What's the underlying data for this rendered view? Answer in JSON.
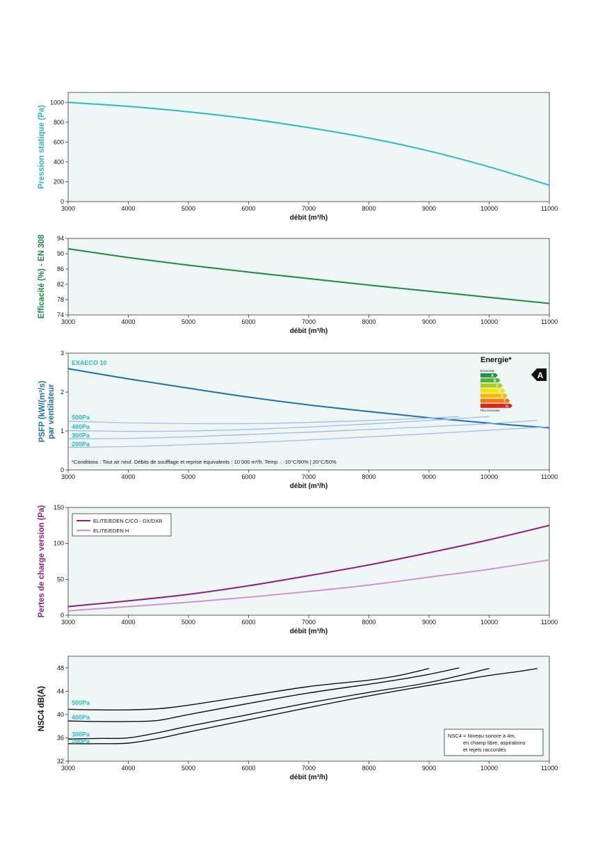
{
  "charts": [
    {
      "type": "line",
      "ylabel": "Pression statique (Pa)",
      "xlabel": "débit (m³/h)",
      "xlim": [
        3000,
        11000
      ],
      "ylim": [
        0,
        1100
      ],
      "xticks": [
        3000,
        4000,
        5000,
        6000,
        7000,
        8000,
        9000,
        10000,
        11000
      ],
      "yticks": [
        0,
        200,
        400,
        600,
        800,
        1000
      ],
      "color": "#2cb9bf",
      "series": [
        {
          "color": "#2cb9bf",
          "points": [
            [
              3000,
              1000
            ],
            [
              4000,
              960
            ],
            [
              5000,
              905
            ],
            [
              6000,
              835
            ],
            [
              7000,
              745
            ],
            [
              8000,
              640
            ],
            [
              9000,
              510
            ],
            [
              10000,
              350
            ],
            [
              11000,
              165
            ]
          ]
        }
      ]
    },
    {
      "type": "line",
      "ylabel": "Efficacité (%) - EN 308",
      "xlabel": "débit (m³/h)",
      "xlim": [
        3000,
        11000
      ],
      "ylim": [
        74,
        94
      ],
      "xticks": [
        3000,
        4000,
        5000,
        6000,
        7000,
        8000,
        9000,
        10000,
        11000
      ],
      "yticks": [
        74,
        78,
        82,
        86,
        90,
        94
      ],
      "color": "#1a8a45",
      "series": [
        {
          "color": "#1a8a45",
          "points": [
            [
              3000,
              91.3
            ],
            [
              4000,
              89.0
            ],
            [
              5000,
              87.0
            ],
            [
              6000,
              85.2
            ],
            [
              7000,
              83.5
            ],
            [
              8000,
              81.8
            ],
            [
              9000,
              80.2
            ],
            [
              10000,
              78.6
            ],
            [
              11000,
              77.0
            ]
          ]
        }
      ]
    },
    {
      "type": "line",
      "ylabel": "PSFP (kW/(m³/s)",
      "ylabel2": "par ventilateur",
      "xlabel": "débit (m³/h)",
      "xlim": [
        3000,
        11000
      ],
      "ylim": [
        0,
        3
      ],
      "xticks": [
        3000,
        4000,
        5000,
        6000,
        7000,
        8000,
        9000,
        10000,
        11000
      ],
      "yticks": [
        0,
        1,
        2,
        3
      ],
      "color": "#1a6fb5",
      "model_label": "EXAECO 10",
      "footnote": "*Conditions : Tout air neuf. Débits de soufflage et reprise équivalents : 10 000 m³/h. Temp. : -10°C/90% | 20°C/50%",
      "energy_label": {
        "title": "Energie*",
        "top": "Economie",
        "bottom": "Peu économe",
        "grades": [
          "A",
          "B",
          "C",
          "D",
          "E",
          "F",
          "G"
        ],
        "colors": [
          "#1b9a3c",
          "#57b130",
          "#a8c92a",
          "#f2e300",
          "#f6b800",
          "#ee7a12",
          "#e3201b"
        ],
        "rating": "A"
      },
      "series": [
        {
          "name": "",
          "color": "#1a6fb5",
          "width": 2,
          "points": [
            [
              3000,
              2.6
            ],
            [
              4000,
              2.34
            ],
            [
              5000,
              2.1
            ],
            [
              6000,
              1.87
            ],
            [
              7000,
              1.67
            ],
            [
              8000,
              1.5
            ],
            [
              9000,
              1.34
            ],
            [
              10000,
              1.2
            ],
            [
              11000,
              1.08
            ]
          ]
        },
        {
          "name": "500Pa",
          "color": "#9fbde8",
          "width": 1.3,
          "points": [
            [
              3000,
              1.25
            ],
            [
              4000,
              1.21
            ],
            [
              5000,
              1.19
            ],
            [
              6000,
              1.19
            ],
            [
              7000,
              1.22
            ],
            [
              8000,
              1.27
            ],
            [
              9000,
              1.33
            ],
            [
              9500,
              1.37
            ]
          ]
        },
        {
          "name": "400Pa",
          "color": "#9fbde8",
          "width": 1.3,
          "points": [
            [
              3000,
              1.01
            ],
            [
              4000,
              0.99
            ],
            [
              5000,
              1.0
            ],
            [
              6000,
              1.04
            ],
            [
              7000,
              1.1
            ],
            [
              8000,
              1.18
            ],
            [
              9000,
              1.27
            ],
            [
              10000,
              1.37
            ]
          ]
        },
        {
          "name": "300Pa",
          "color": "#9fbde8",
          "width": 1.3,
          "points": [
            [
              3000,
              0.8
            ],
            [
              4000,
              0.81
            ],
            [
              5000,
              0.85
            ],
            [
              6000,
              0.91
            ],
            [
              7000,
              0.97
            ],
            [
              8000,
              1.04
            ],
            [
              9000,
              1.11
            ],
            [
              10000,
              1.19
            ],
            [
              10800,
              1.27
            ]
          ]
        },
        {
          "name": "200Pa",
          "color": "#9fbde8",
          "width": 1.3,
          "points": [
            [
              3000,
              0.58
            ],
            [
              4000,
              0.6
            ],
            [
              5000,
              0.65
            ],
            [
              6000,
              0.7
            ],
            [
              7000,
              0.77
            ],
            [
              8000,
              0.85
            ],
            [
              9000,
              0.93
            ],
            [
              10000,
              1.02
            ],
            [
              11000,
              1.11
            ]
          ]
        }
      ],
      "curve_labels": [
        {
          "text": "500Pa",
          "y": 1.35
        },
        {
          "text": "400Pa",
          "y": 1.11
        },
        {
          "text": "300Pa",
          "y": 0.88
        },
        {
          "text": "200Pa",
          "y": 0.66
        }
      ],
      "curve_label_color": "#2cb9bf"
    },
    {
      "type": "line",
      "ylabel": "Pertes de charge version (Pa)",
      "xlabel": "débit (m³/h)",
      "xlim": [
        3000,
        11000
      ],
      "ylim": [
        0,
        150
      ],
      "xticks": [
        3000,
        4000,
        5000,
        6000,
        7000,
        8000,
        9000,
        10000,
        11000
      ],
      "yticks": [
        0,
        50,
        100,
        150
      ],
      "color": "#8e1f7f",
      "legend": [
        "ELITE/EDEN C/CO - DX/DXR",
        "ELITE/EDEN H"
      ],
      "series": [
        {
          "name": "ELITE/EDEN C/CO - DX/DXR",
          "color": "#8e1f7f",
          "width": 2,
          "points": [
            [
              3000,
              12
            ],
            [
              4000,
              20
            ],
            [
              5000,
              29
            ],
            [
              6000,
              41
            ],
            [
              7000,
              55
            ],
            [
              8000,
              70
            ],
            [
              9000,
              87
            ],
            [
              10000,
              105
            ],
            [
              11000,
              125
            ]
          ]
        },
        {
          "name": "ELITE/EDEN H",
          "color": "#d294c8",
          "width": 2,
          "points": [
            [
              3000,
              6
            ],
            [
              4000,
              12
            ],
            [
              5000,
              18
            ],
            [
              6000,
              25
            ],
            [
              7000,
              33
            ],
            [
              8000,
              42
            ],
            [
              9000,
              53
            ],
            [
              10000,
              64
            ],
            [
              11000,
              77
            ]
          ]
        }
      ]
    },
    {
      "type": "line",
      "ylabel": "NSC4 dB(A)",
      "xlabel": "débit (m³/h)",
      "xlim": [
        3000,
        11000
      ],
      "ylim": [
        32,
        50
      ],
      "xticks": [
        3000,
        4000,
        5000,
        6000,
        7000,
        8000,
        9000,
        10000,
        11000
      ],
      "yticks": [
        32,
        36,
        40,
        44,
        48
      ],
      "color": "#111111",
      "note": [
        "NSC4 = Niveau sonore à 4m,",
        "en champ libre, aspirations",
        "et rejets raccordés"
      ],
      "series": [
        {
          "name": "500Pa",
          "color": "#111111",
          "width": 1.4,
          "points": [
            [
              3000,
              40.9
            ],
            [
              3500,
              40.8
            ],
            [
              4000,
              40.8
            ],
            [
              4500,
              41.0
            ],
            [
              5000,
              41.6
            ],
            [
              6000,
              43.2
            ],
            [
              7000,
              44.8
            ],
            [
              8000,
              45.9
            ],
            [
              8500,
              46.7
            ],
            [
              9000,
              47.9
            ]
          ]
        },
        {
          "name": "400Pa",
          "color": "#111111",
          "width": 1.4,
          "points": [
            [
              3000,
              38.9
            ],
            [
              3500,
              38.8
            ],
            [
              4000,
              38.8
            ],
            [
              4500,
              39.0
            ],
            [
              5000,
              40.0
            ],
            [
              6000,
              41.9
            ],
            [
              7000,
              43.7
            ],
            [
              8000,
              45.2
            ],
            [
              8500,
              46.0
            ],
            [
              9000,
              46.9
            ],
            [
              9500,
              48.0
            ]
          ]
        },
        {
          "name": "300Pa",
          "color": "#111111",
          "width": 1.4,
          "points": [
            [
              3000,
              35.8
            ],
            [
              3500,
              35.9
            ],
            [
              4000,
              36.0
            ],
            [
              4500,
              36.9
            ],
            [
              5000,
              38.0
            ],
            [
              6000,
              40.0
            ],
            [
              7000,
              42.0
            ],
            [
              8000,
              43.8
            ],
            [
              9000,
              45.5
            ],
            [
              10000,
              47.9
            ]
          ]
        },
        {
          "name": "200Pa",
          "color": "#111111",
          "width": 1.4,
          "points": [
            [
              3000,
              35.0
            ],
            [
              3500,
              35.0
            ],
            [
              4000,
              35.1
            ],
            [
              4500,
              35.9
            ],
            [
              5000,
              37.0
            ],
            [
              6000,
              39.1
            ],
            [
              7000,
              41.2
            ],
            [
              8000,
              43.2
            ],
            [
              9000,
              45.0
            ],
            [
              10000,
              46.7
            ],
            [
              10500,
              47.4
            ],
            [
              10800,
              47.9
            ]
          ]
        }
      ],
      "curve_labels": [
        {
          "text": "500Pa",
          "y": 42.0
        },
        {
          "text": "400Pa",
          "y": 39.5
        },
        {
          "text": "300Pa",
          "y": 36.6
        },
        {
          "text": "200Pa",
          "y": 35.4
        }
      ],
      "curve_label_color": "#2cb9bf"
    }
  ]
}
